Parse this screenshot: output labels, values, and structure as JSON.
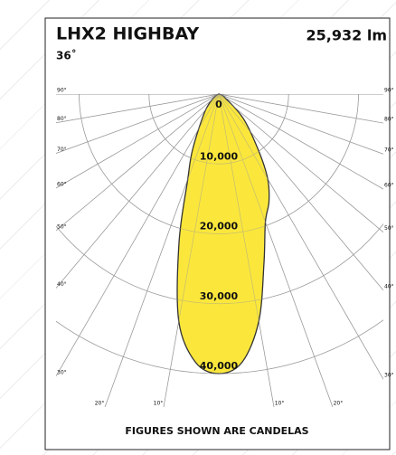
{
  "chart_data": {
    "type": "polar",
    "title": "LHX2 HIGHBAY",
    "subtitle": "36˚",
    "annotation": "25,932 lm",
    "footer": "FIGURES SHOWN ARE CANDELAS",
    "rlim": [
      0,
      40000
    ],
    "rticks": [
      0,
      {
        "value": 10000,
        "label": "10,000"
      },
      {
        "value": 20000,
        "label": "20,000"
      },
      {
        "value": 30000,
        "label": "30,000"
      },
      {
        "value": 40000,
        "label": "40,000"
      }
    ],
    "angleticks": [
      {
        "value": 90,
        "label": "90°"
      },
      {
        "value": 80,
        "label": "80°"
      },
      {
        "value": 70,
        "label": "70°"
      },
      {
        "value": 60,
        "label": "60°"
      },
      {
        "value": 50,
        "label": "50°"
      },
      {
        "value": 40,
        "label": "40°"
      },
      {
        "value": 30,
        "label": "30°"
      },
      {
        "value": 20,
        "label": "20°"
      },
      {
        "value": 10,
        "label": "10°"
      }
    ],
    "series": [
      {
        "color": "#fbe73c",
        "x": [
          -90,
          -60,
          -45,
          -35,
          -25,
          -20,
          -15,
          -10,
          -5,
          0,
          5,
          10,
          15,
          20,
          25,
          30,
          35,
          45,
          60,
          90
        ],
        "values": [
          0,
          500,
          2000,
          4000,
          9000,
          13000,
          22000,
          33000,
          38500,
          40000,
          38500,
          33000,
          25000,
          19500,
          17000,
          14000,
          10000,
          5000,
          1000,
          0
        ]
      }
    ]
  }
}
